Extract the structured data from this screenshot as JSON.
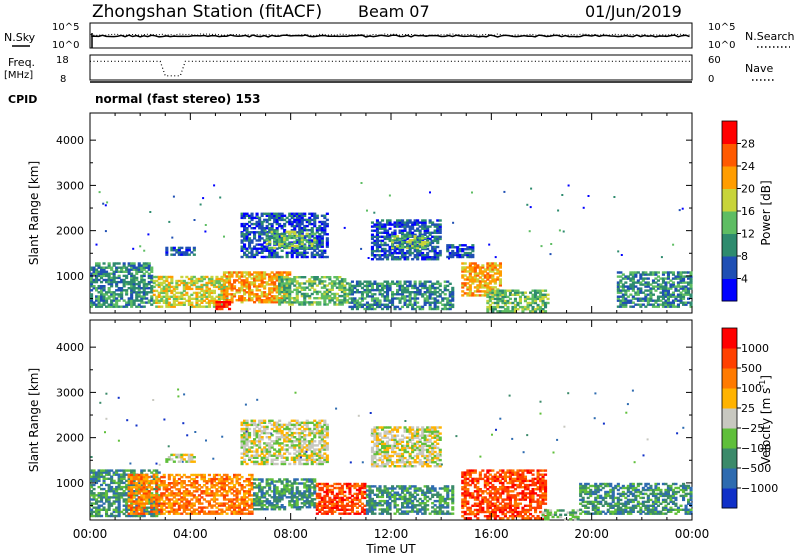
{
  "header": {
    "title": "Zhongshan Station (fitACF)",
    "beam": "Beam 07",
    "date": "01/Jun/2019",
    "cpid_label": "CPID",
    "cpid_value": "normal (fast stereo) 153"
  },
  "chart_data": [
    {
      "type": "line",
      "name": "noise-panel",
      "left_label": "N.Sky",
      "right_label": "N.Search",
      "y_ticks_left": [
        "10^5",
        "10^0"
      ],
      "y_ticks_right": [
        "10^5",
        "10^0"
      ],
      "note": "N.Sky solid near top; N.Search dotted near top"
    },
    {
      "type": "line",
      "name": "freq-panel",
      "left_label": "Freq.",
      "left_unit": "[MHz]",
      "right_label": "Nave",
      "y_ticks_left": [
        "18",
        "8"
      ],
      "y_ticks_right": [
        "60",
        "0"
      ],
      "freq_mhz": 8.0,
      "nave_series": [
        {
          "hour": 0,
          "nave": 45
        },
        {
          "hour": 2.8,
          "nave": 45
        },
        {
          "hour": 3.0,
          "nave": 10
        },
        {
          "hour": 3.6,
          "nave": 10
        },
        {
          "hour": 3.8,
          "nave": 45
        },
        {
          "hour": 24,
          "nave": 45
        }
      ]
    },
    {
      "type": "heatmap",
      "name": "power",
      "ylabel": "Slant Range [km]",
      "ytick_labels": [
        "1000",
        "2000",
        "3000",
        "4000"
      ],
      "ylim": [
        180,
        4600
      ],
      "xlim_hours": [
        0,
        24
      ],
      "colorbar_label": "Power [dB]",
      "colorbar_ticks": [
        "28",
        "24",
        "20",
        "16",
        "12",
        "8",
        "4"
      ],
      "colors": [
        "#0000ff",
        "#1f4fb4",
        "#2e8b6e",
        "#5ebd63",
        "#c8d43a",
        "#ff9d00",
        "#ff5a00",
        "#ff0000"
      ],
      "regions": [
        {
          "h0": 0,
          "h1": 2.5,
          "r0": 300,
          "r1": 1300,
          "level": 2
        },
        {
          "h0": 2.5,
          "h1": 5.5,
          "r0": 300,
          "r1": 1000,
          "level": 4
        },
        {
          "h0": 5.3,
          "h1": 8.0,
          "r0": 400,
          "r1": 1100,
          "level": 5
        },
        {
          "h0": 5.0,
          "h1": 5.6,
          "r0": 250,
          "r1": 450,
          "level": 7
        },
        {
          "h0": 7.5,
          "h1": 10.3,
          "r0": 350,
          "r1": 1000,
          "level": 3
        },
        {
          "h0": 10.3,
          "h1": 14.5,
          "r0": 250,
          "r1": 900,
          "level": 2
        },
        {
          "h0": 14.8,
          "h1": 16.4,
          "r0": 550,
          "r1": 1300,
          "level": 5
        },
        {
          "h0": 15.8,
          "h1": 18.3,
          "r0": 200,
          "r1": 700,
          "level": 3
        },
        {
          "h0": 6.0,
          "h1": 9.5,
          "r0": 1400,
          "r1": 2400,
          "level": 1
        },
        {
          "h0": 7.0,
          "h1": 9.0,
          "r0": 1600,
          "r1": 2000,
          "level": 3
        },
        {
          "h0": 11.2,
          "h1": 14.0,
          "r0": 1350,
          "r1": 2250,
          "level": 1
        },
        {
          "h0": 12.0,
          "h1": 13.5,
          "r0": 1600,
          "r1": 1900,
          "level": 3
        },
        {
          "h0": 3.0,
          "h1": 4.2,
          "r0": 1450,
          "r1": 1650,
          "level": 1
        },
        {
          "h0": 14.2,
          "h1": 15.3,
          "r0": 1400,
          "r1": 1700,
          "level": 1
        },
        {
          "h0": 21.0,
          "h1": 24.0,
          "r0": 300,
          "r1": 1100,
          "level": 2
        }
      ]
    },
    {
      "type": "heatmap",
      "name": "velocity",
      "ylabel": "Slant Range [km]",
      "ytick_labels": [
        "1000",
        "2000",
        "3000",
        "4000"
      ],
      "ylim": [
        180,
        4600
      ],
      "xlim_hours": [
        0,
        24
      ],
      "xtick_labels": [
        "00:00",
        "04:00",
        "08:00",
        "12:00",
        "16:00",
        "20:00",
        "00:00"
      ],
      "xlabel": "Time UT",
      "colorbar_label": "Velocity [m s",
      "colorbar_unit_sup": "-1",
      "colorbar_ticks": [
        "1000",
        "500",
        "100",
        "25",
        "−25",
        "−100",
        "−500",
        "−1000"
      ],
      "colors": [
        "#1030c8",
        "#2e6bb0",
        "#3b8a6a",
        "#5fbf3a",
        "#c8c8c0",
        "#ffb300",
        "#ff7a00",
        "#ff4000",
        "#ff0000"
      ],
      "regions": [
        {
          "h0": 0,
          "h1": 2.8,
          "r0": 250,
          "r1": 1300,
          "level": 2
        },
        {
          "h0": 1.5,
          "h1": 6.5,
          "r0": 300,
          "r1": 1200,
          "level": 6
        },
        {
          "h0": 6.5,
          "h1": 9.0,
          "r0": 400,
          "r1": 1100,
          "level": 2
        },
        {
          "h0": 9.0,
          "h1": 11.0,
          "r0": 300,
          "r1": 1000,
          "level": 7
        },
        {
          "h0": 11.0,
          "h1": 14.5,
          "r0": 300,
          "r1": 950,
          "level": 2
        },
        {
          "h0": 14.8,
          "h1": 18.2,
          "r0": 200,
          "r1": 1300,
          "level": 7
        },
        {
          "h0": 18.0,
          "h1": 19.5,
          "r0": 180,
          "r1": 420,
          "level": 3
        },
        {
          "h0": 19.5,
          "h1": 24.0,
          "r0": 300,
          "r1": 1000,
          "level": 2
        },
        {
          "h0": 6.0,
          "h1": 9.5,
          "r0": 1400,
          "r1": 2400,
          "level": 4
        },
        {
          "h0": 11.2,
          "h1": 14.0,
          "r0": 1350,
          "r1": 2250,
          "level": 4
        },
        {
          "h0": 3.0,
          "h1": 4.2,
          "r0": 1450,
          "r1": 1650,
          "level": 4
        }
      ]
    }
  ]
}
